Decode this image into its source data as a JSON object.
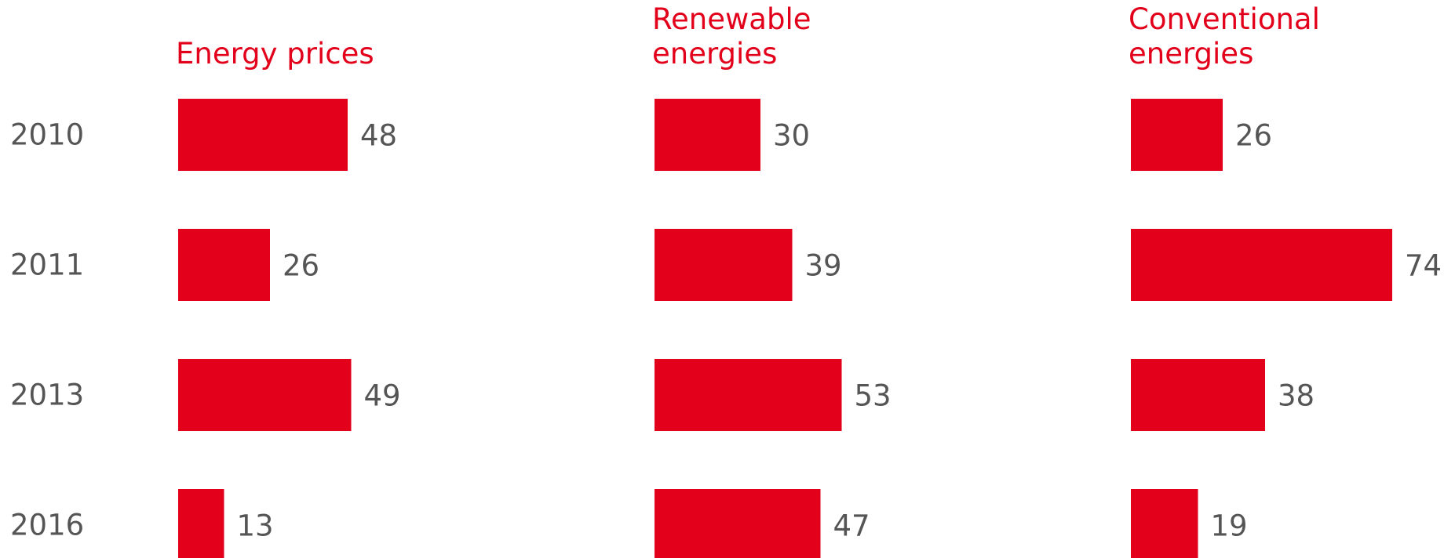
{
  "chart_data": {
    "type": "bar",
    "orientation": "horizontal",
    "categories": [
      "2010",
      "2011",
      "2013",
      "2016"
    ],
    "bar_color": "#e2001a",
    "label_color": "#555555",
    "panels": [
      {
        "title": [
          "Energy prices"
        ],
        "values": [
          48,
          26,
          49,
          13
        ]
      },
      {
        "title": [
          "Renewable",
          "energies"
        ],
        "values": [
          30,
          39,
          53,
          47
        ]
      },
      {
        "title": [
          "Conventional",
          "energies"
        ],
        "values": [
          26,
          74,
          38,
          19
        ]
      }
    ]
  }
}
